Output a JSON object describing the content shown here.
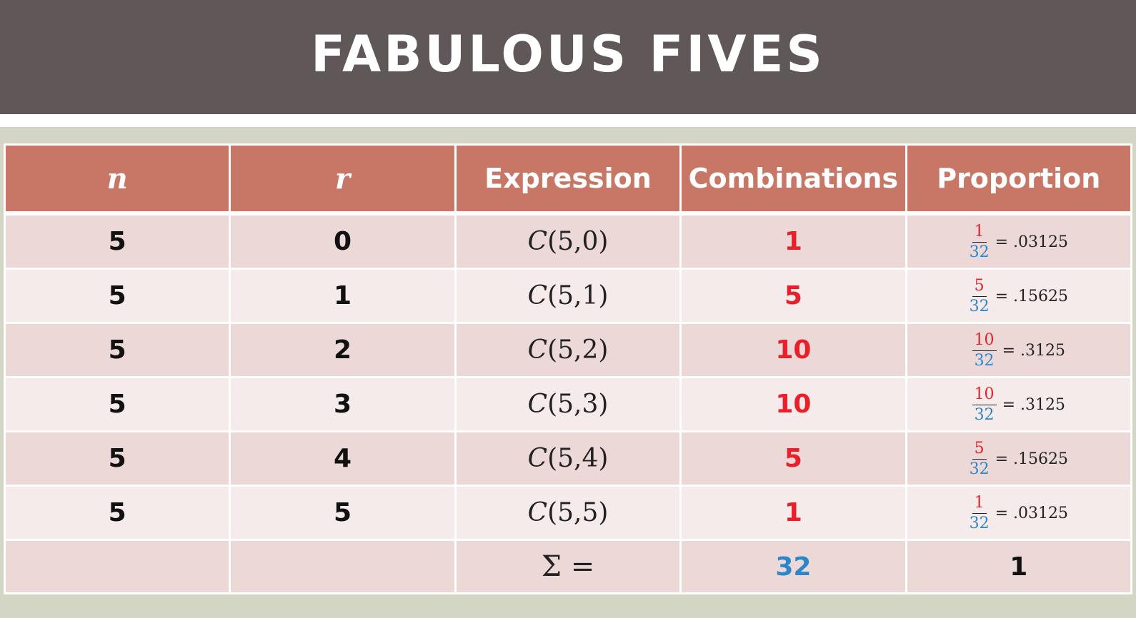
{
  "title": "FABULOUS FIVES",
  "table": {
    "headers": [
      "n",
      "r",
      "Expression",
      "Combinations",
      "Proportion"
    ],
    "rows": [
      {
        "n": "5",
        "r": "0",
        "expr_c": "C",
        "expr_args": "(5,0)",
        "combinations": "1",
        "prop_num": "1",
        "prop_den": "32",
        "prop_value": "= .03125"
      },
      {
        "n": "5",
        "r": "1",
        "expr_c": "C",
        "expr_args": "(5,1)",
        "combinations": "5",
        "prop_num": "5",
        "prop_den": "32",
        "prop_value": "= .15625"
      },
      {
        "n": "5",
        "r": "2",
        "expr_c": "C",
        "expr_args": "(5,2)",
        "combinations": "10",
        "prop_num": "10",
        "prop_den": "32",
        "prop_value": "= .3125"
      },
      {
        "n": "5",
        "r": "3",
        "expr_c": "C",
        "expr_args": "(5,3)",
        "combinations": "10",
        "prop_num": "10",
        "prop_den": "32",
        "prop_value": "= .3125"
      },
      {
        "n": "5",
        "r": "4",
        "expr_c": "C",
        "expr_args": "(5,4)",
        "combinations": "5",
        "prop_num": "5",
        "prop_den": "32",
        "prop_value": "= .15625"
      },
      {
        "n": "5",
        "r": "5",
        "expr_c": "C",
        "expr_args": "(5,5)",
        "combinations": "1",
        "prop_num": "1",
        "prop_den": "32",
        "prop_value": "= .03125"
      }
    ],
    "sum_row": {
      "label": "Σ =",
      "total_combinations": "32",
      "total_proportion": "1"
    }
  },
  "colors": {
    "title_bar": "#605759",
    "header_fill": "#c87766",
    "row_dark": "#ebd8d7",
    "row_light": "#f5ebeb",
    "background": "#d3d6c5",
    "red": "#e8202a",
    "blue": "#2e86c8"
  }
}
